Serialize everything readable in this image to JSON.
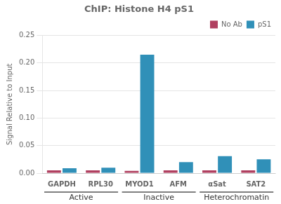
{
  "chart_data": {
    "type": "bar",
    "title": "ChIP: Histone H4 pS1",
    "y_label": "Signal Relative to Input",
    "categories": [
      "GAPDH",
      "RPL30",
      "MYOD1",
      "AFM",
      "αSat",
      "SAT2"
    ],
    "series": [
      {
        "name": "No Ab",
        "color": "#b04060",
        "values": [
          0.005,
          0.005,
          0.004,
          0.005,
          0.005,
          0.005
        ]
      },
      {
        "name": "pS1",
        "color": "#3090b8",
        "values": [
          0.009,
          0.01,
          0.215,
          0.02,
          0.031,
          0.025
        ]
      }
    ],
    "annotations": [
      {
        "text": "Active",
        "categories": [
          "GAPDH",
          "RPL30"
        ]
      },
      {
        "text": "Inactive",
        "categories": [
          "MYOD1",
          "AFM"
        ]
      },
      {
        "text": "Heterochromatin",
        "categories": [
          "αSat",
          "SAT2"
        ]
      }
    ],
    "ylim": [
      0,
      0.25
    ],
    "yticks": [
      {
        "value": 0,
        "label": "0.00"
      },
      0.05,
      {
        "value": 0.1,
        "label": "0.10"
      },
      0.15,
      {
        "value": 0.2,
        "label": "0.20"
      },
      0.25
    ],
    "grid": true,
    "legend": "upper right"
  }
}
